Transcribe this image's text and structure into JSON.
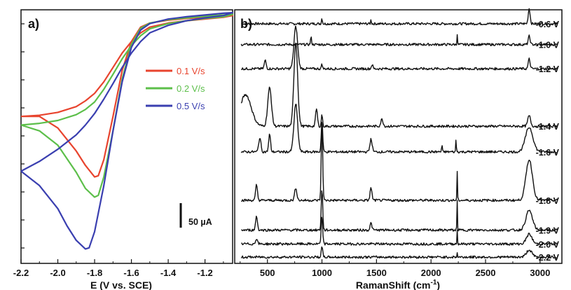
{
  "chart_data": [
    {
      "type": "line",
      "panel_label": "a)",
      "xlabel": "E (V vs. SCE)",
      "ylabel": "",
      "xlim": [
        -2.2,
        -1.05
      ],
      "x_ticks": [
        -2.2,
        -2.0,
        -1.8,
        -1.6,
        -1.4,
        -1.2
      ],
      "x_tick_labels": [
        "-2.2",
        "-2.0",
        "-1.8",
        "-1.6",
        "-1.4",
        "-1.2"
      ],
      "ylim": [
        -420,
        20
      ],
      "y_axis_tick_labels": "none",
      "grid": false,
      "legend_placement": "right",
      "scale_bar_label": "50 µA",
      "scale_bar_value": 50,
      "series": [
        {
          "name": "0.1 V/s",
          "color": "#e8442e",
          "points": [
            [
              -2.2,
              -165
            ],
            [
              -2.1,
              -165
            ],
            [
              -2.0,
              -185
            ],
            [
              -1.9,
              -225
            ],
            [
              -1.85,
              -250
            ],
            [
              -1.8,
              -270
            ],
            [
              -1.78,
              -268
            ],
            [
              -1.75,
              -240
            ],
            [
              -1.7,
              -165
            ],
            [
              -1.65,
              -85
            ],
            [
              -1.6,
              -35
            ],
            [
              -1.55,
              -10
            ],
            [
              -1.5,
              -3
            ],
            [
              -1.4,
              2
            ],
            [
              -1.3,
              5
            ],
            [
              -1.2,
              7
            ],
            [
              -1.1,
              9
            ],
            [
              -1.05,
              10
            ],
            [
              -1.05,
              10
            ],
            [
              -1.1,
              7
            ],
            [
              -1.2,
              4
            ],
            [
              -1.3,
              1
            ],
            [
              -1.4,
              -3
            ],
            [
              -1.5,
              -10
            ],
            [
              -1.55,
              -20
            ],
            [
              -1.6,
              -35
            ],
            [
              -1.65,
              -55
            ],
            [
              -1.7,
              -80
            ],
            [
              -1.75,
              -105
            ],
            [
              -1.8,
              -125
            ],
            [
              -1.85,
              -138
            ],
            [
              -1.9,
              -148
            ],
            [
              -2.0,
              -158
            ],
            [
              -2.1,
              -163
            ],
            [
              -2.2,
              -165
            ]
          ]
        },
        {
          "name": "0.2 V/s",
          "color": "#5cbf4a",
          "points": [
            [
              -2.2,
              -180
            ],
            [
              -2.1,
              -190
            ],
            [
              -2.0,
              -215
            ],
            [
              -1.9,
              -262
            ],
            [
              -1.85,
              -290
            ],
            [
              -1.8,
              -305
            ],
            [
              -1.78,
              -302
            ],
            [
              -1.75,
              -270
            ],
            [
              -1.7,
              -190
            ],
            [
              -1.65,
              -100
            ],
            [
              -1.6,
              -40
            ],
            [
              -1.55,
              -12
            ],
            [
              -1.5,
              -3
            ],
            [
              -1.4,
              3
            ],
            [
              -1.3,
              6
            ],
            [
              -1.2,
              9
            ],
            [
              -1.1,
              11
            ],
            [
              -1.05,
              12
            ],
            [
              -1.05,
              12
            ],
            [
              -1.1,
              8
            ],
            [
              -1.2,
              5
            ],
            [
              -1.3,
              1
            ],
            [
              -1.4,
              -4
            ],
            [
              -1.5,
              -13
            ],
            [
              -1.55,
              -25
            ],
            [
              -1.6,
              -42
            ],
            [
              -1.65,
              -65
            ],
            [
              -1.7,
              -92
            ],
            [
              -1.75,
              -118
            ],
            [
              -1.8,
              -140
            ],
            [
              -1.85,
              -153
            ],
            [
              -1.9,
              -162
            ],
            [
              -2.0,
              -172
            ],
            [
              -2.1,
              -177
            ],
            [
              -2.2,
              -180
            ]
          ]
        },
        {
          "name": "0.5 V/s",
          "color": "#3a3fb0",
          "points": [
            [
              -2.2,
              -260
            ],
            [
              -2.1,
              -285
            ],
            [
              -2.0,
              -325
            ],
            [
              -1.95,
              -355
            ],
            [
              -1.9,
              -380
            ],
            [
              -1.85,
              -395
            ],
            [
              -1.83,
              -393
            ],
            [
              -1.8,
              -365
            ],
            [
              -1.75,
              -285
            ],
            [
              -1.7,
              -190
            ],
            [
              -1.65,
              -105
            ],
            [
              -1.6,
              -45
            ],
            [
              -1.55,
              -15
            ],
            [
              -1.5,
              -4
            ],
            [
              -1.4,
              4
            ],
            [
              -1.3,
              8
            ],
            [
              -1.2,
              11
            ],
            [
              -1.1,
              14
            ],
            [
              -1.05,
              15
            ],
            [
              -1.05,
              15
            ],
            [
              -1.1,
              10
            ],
            [
              -1.2,
              6
            ],
            [
              -1.3,
              1
            ],
            [
              -1.4,
              -7
            ],
            [
              -1.5,
              -20
            ],
            [
              -1.55,
              -35
            ],
            [
              -1.6,
              -55
            ],
            [
              -1.65,
              -80
            ],
            [
              -1.7,
              -108
            ],
            [
              -1.75,
              -135
            ],
            [
              -1.8,
              -160
            ],
            [
              -1.85,
              -180
            ],
            [
              -1.9,
              -197
            ],
            [
              -2.0,
              -222
            ],
            [
              -2.1,
              -243
            ],
            [
              -2.2,
              -260
            ]
          ]
        }
      ]
    },
    {
      "type": "line",
      "panel_label": "b)",
      "xlabel": "RamanShift (cm⁻¹)",
      "xlabel_main": "RamanShift (cm",
      "xlabel_sup": "-1",
      "xlabel_end": ")",
      "ylabel": "",
      "xlim": [
        200,
        3200
      ],
      "x_ticks": [
        500,
        1000,
        1500,
        2000,
        2500,
        3000
      ],
      "x_tick_labels": [
        "500",
        "1000",
        "1500",
        "2000",
        "2500",
        "3000"
      ],
      "y_axis_tick_labels": "none",
      "grid": false,
      "color": "#111111",
      "spectra": [
        {
          "name": "-0.6 V",
          "baseline": 10,
          "peaks": [
            [
              2900,
              22,
              1.0
            ],
            [
              1000,
              8,
              0.5
            ],
            [
              1450,
              6,
              0.4
            ]
          ]
        },
        {
          "name": "-1.0 V",
          "baseline": 40,
          "peaks": [
            [
              2240,
              15,
              0.3
            ],
            [
              900,
              10,
              0.6
            ],
            [
              2900,
              12,
              1.0
            ]
          ]
        },
        {
          "name": "-1.2 V",
          "baseline": 75,
          "peaks": [
            [
              760,
              60,
              2.0
            ],
            [
              2900,
              14,
              1.0
            ],
            [
              480,
              12,
              1.0
            ],
            [
              1000,
              8,
              0.5
            ],
            [
              1460,
              6,
              0.8
            ]
          ]
        },
        {
          "name": "-1.4 V",
          "baseline": 158,
          "peaks": [
            [
              760,
              120,
              2.0
            ],
            [
              520,
              55,
              2.0
            ],
            [
              300,
              45,
              6.0
            ],
            [
              950,
              25,
              1.0
            ],
            [
              1000,
              18,
              0.6
            ],
            [
              1550,
              10,
              1.2
            ],
            [
              2900,
              15,
              1.5
            ]
          ]
        },
        {
          "name": "-1.6 V",
          "baseline": 195,
          "peaks": [
            [
              760,
              68,
              2.0
            ],
            [
              1000,
              44,
              0.8
            ],
            [
              520,
              25,
              1.0
            ],
            [
              430,
              20,
              1.2
            ],
            [
              2900,
              35,
              4.0
            ],
            [
              2230,
              22,
              0.3
            ],
            [
              1450,
              18,
              1.2
            ],
            [
              2100,
              10,
              0.4
            ]
          ]
        },
        {
          "name": "-1.8 V",
          "baseline": 265,
          "peaks": [
            [
              1000,
              108,
              0.8
            ],
            [
              2900,
              58,
              3.5
            ],
            [
              2240,
              42,
              0.3
            ],
            [
              400,
              22,
              1.0
            ],
            [
              760,
              18,
              1.2
            ],
            [
              1450,
              18,
              1.0
            ]
          ]
        },
        {
          "name": "-1.9 V",
          "baseline": 308,
          "peaks": [
            [
              1000,
              58,
              0.8
            ],
            [
              2240,
              42,
              0.3
            ],
            [
              2900,
              28,
              3.5
            ],
            [
              400,
              20,
              1.0
            ],
            [
              1450,
              10,
              1.0
            ]
          ]
        },
        {
          "name": "-2.0 V",
          "baseline": 328,
          "peaks": [
            [
              1000,
              38,
              0.8
            ],
            [
              2240,
              20,
              0.3
            ],
            [
              2900,
              14,
              3.0
            ],
            [
              400,
              8,
              1.0
            ]
          ]
        },
        {
          "name": "-2.2 V",
          "baseline": 347,
          "peaks": [
            [
              1000,
              14,
              0.8
            ],
            [
              2900,
              10,
              3.0
            ],
            [
              2240,
              6,
              0.3
            ]
          ]
        }
      ]
    }
  ]
}
